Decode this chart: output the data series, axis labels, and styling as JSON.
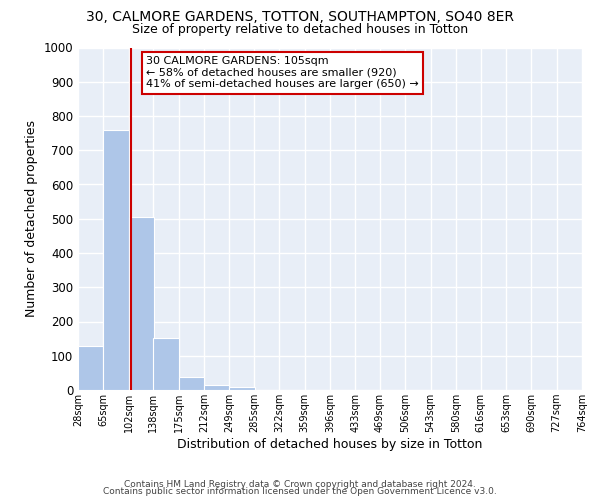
{
  "title": "30, CALMORE GARDENS, TOTTON, SOUTHAMPTON, SO40 8ER",
  "subtitle": "Size of property relative to detached houses in Totton",
  "xlabel": "Distribution of detached houses by size in Totton",
  "ylabel": "Number of detached properties",
  "footer_line1": "Contains HM Land Registry data © Crown copyright and database right 2024.",
  "footer_line2": "Contains public sector information licensed under the Open Government Licence v3.0.",
  "bin_edges": [
    28,
    65,
    102,
    138,
    175,
    212,
    249,
    285,
    322,
    359,
    396,
    433,
    469,
    506,
    543,
    580,
    616,
    653,
    690,
    727,
    764
  ],
  "bar_heights": [
    128,
    760,
    505,
    152,
    37,
    15,
    8,
    0,
    0,
    0,
    0,
    0,
    0,
    0,
    0,
    0,
    0,
    0,
    0,
    0
  ],
  "bar_color": "#aec6e8",
  "bar_edge_color": "#aec6e8",
  "property_size": 105,
  "vline_color": "#cc0000",
  "annotation_line1": "30 CALMORE GARDENS: 105sqm",
  "annotation_line2": "← 58% of detached houses are smaller (920)",
  "annotation_line3": "41% of semi-detached houses are larger (650) →",
  "annotation_box_color": "white",
  "annotation_box_edge": "#cc0000",
  "ylim": [
    0,
    1000
  ],
  "background_color": "#e8eef7",
  "plot_background": "#e8eef7",
  "grid_color": "white",
  "tick_labels": [
    "28sqm",
    "65sqm",
    "102sqm",
    "138sqm",
    "175sqm",
    "212sqm",
    "249sqm",
    "285sqm",
    "322sqm",
    "359sqm",
    "396sqm",
    "433sqm",
    "469sqm",
    "506sqm",
    "543sqm",
    "580sqm",
    "616sqm",
    "653sqm",
    "690sqm",
    "727sqm",
    "764sqm"
  ]
}
